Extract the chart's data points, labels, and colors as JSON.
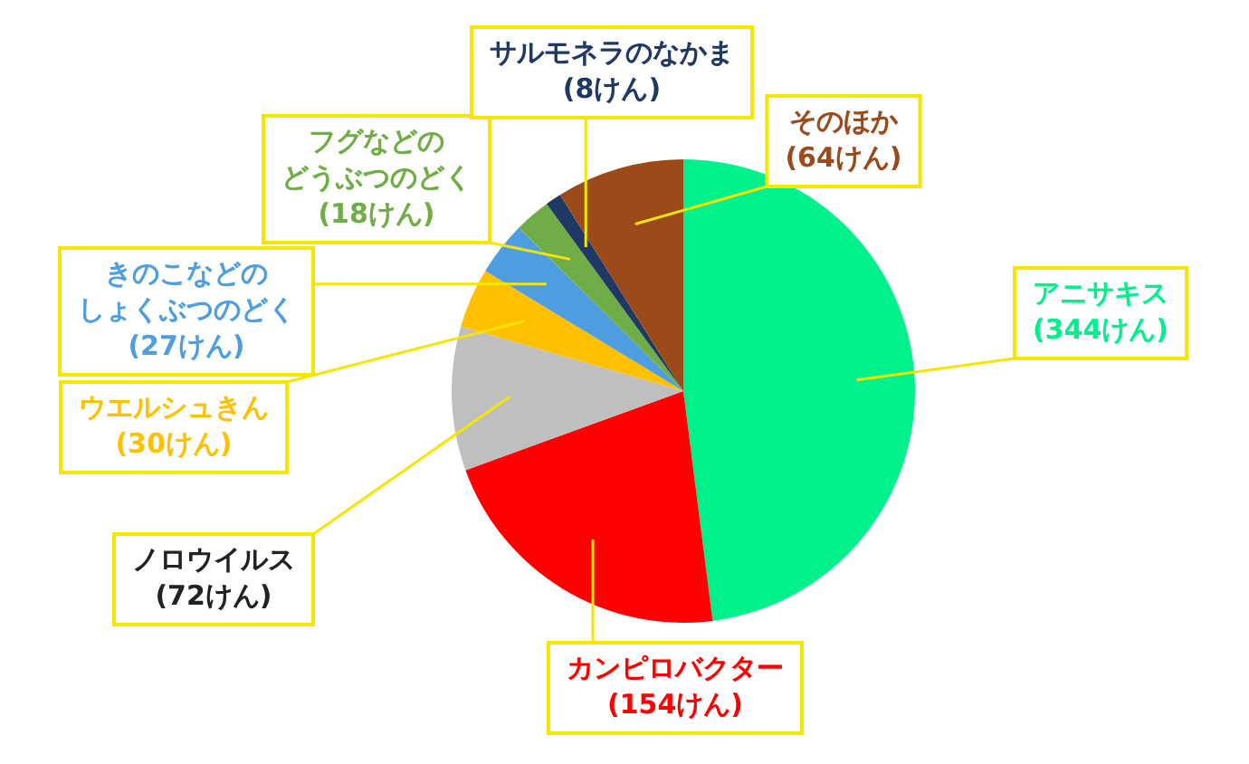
{
  "chart_data": {
    "type": "pie",
    "categories": [
      "アニサキス",
      "カンピロバクター",
      "ノロウイルス",
      "ウエルシュきん",
      "きのこなどのしょくぶつのどく",
      "フグなどのどうぶつのどく",
      "サルモネラのなかま",
      "そのほか"
    ],
    "values": [
      344,
      154,
      72,
      30,
      27,
      18,
      8,
      64
    ],
    "colors": [
      "#00f08c",
      "#ff0000",
      "#bfbfbf",
      "#ffc000",
      "#4f9fe0",
      "#70ad47",
      "#1f3864",
      "#9c4a1a"
    ],
    "value_labels": [
      "(344けん)",
      "(154けん)",
      "(72けん)",
      "(30けん)",
      "(27けん)",
      "(18けん)",
      "(8けん)",
      "(64けん)"
    ],
    "legend": false
  }
}
